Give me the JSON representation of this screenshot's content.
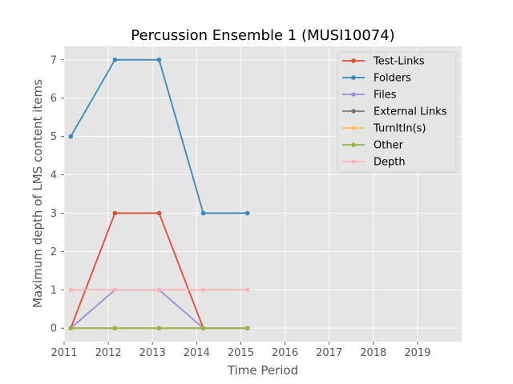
{
  "chart_data": {
    "type": "line",
    "title": "Percussion Ensemble 1 (MUSI10074)",
    "xlabel": "Time Period",
    "ylabel": "Maximum depth of LMS content items",
    "xlim": [
      2011,
      2020
    ],
    "ylim": [
      -0.35,
      7.35
    ],
    "xticks": [
      2011,
      2012,
      2013,
      2014,
      2015,
      2016,
      2017,
      2018,
      2019
    ],
    "yticks": [
      0,
      1,
      2,
      3,
      4,
      5,
      6,
      7
    ],
    "grid": true,
    "legend_position": "top-right",
    "x": [
      2011.15,
      2012.15,
      2013.15,
      2014.15,
      2015.15
    ],
    "series": [
      {
        "name": "Test-Links",
        "color": "#E24A33",
        "values": [
          0,
          3,
          3,
          0,
          0
        ]
      },
      {
        "name": "Folders",
        "color": "#348ABD",
        "values": [
          5,
          7,
          7,
          3,
          3
        ]
      },
      {
        "name": "Files",
        "color": "#988ED5",
        "values": [
          0,
          1,
          1,
          0,
          0
        ]
      },
      {
        "name": "External Links",
        "color": "#777777",
        "values": [
          0,
          0,
          0,
          0,
          0
        ]
      },
      {
        "name": "TurnItIn(s)",
        "color": "#FBC15E",
        "values": [
          0,
          0,
          0,
          0,
          0
        ]
      },
      {
        "name": "Other",
        "color": "#8EBA42",
        "values": [
          0,
          0,
          0,
          0,
          0
        ]
      },
      {
        "name": "Depth",
        "color": "#FFB5B8",
        "values": [
          1,
          1,
          1,
          1,
          1
        ]
      }
    ]
  }
}
